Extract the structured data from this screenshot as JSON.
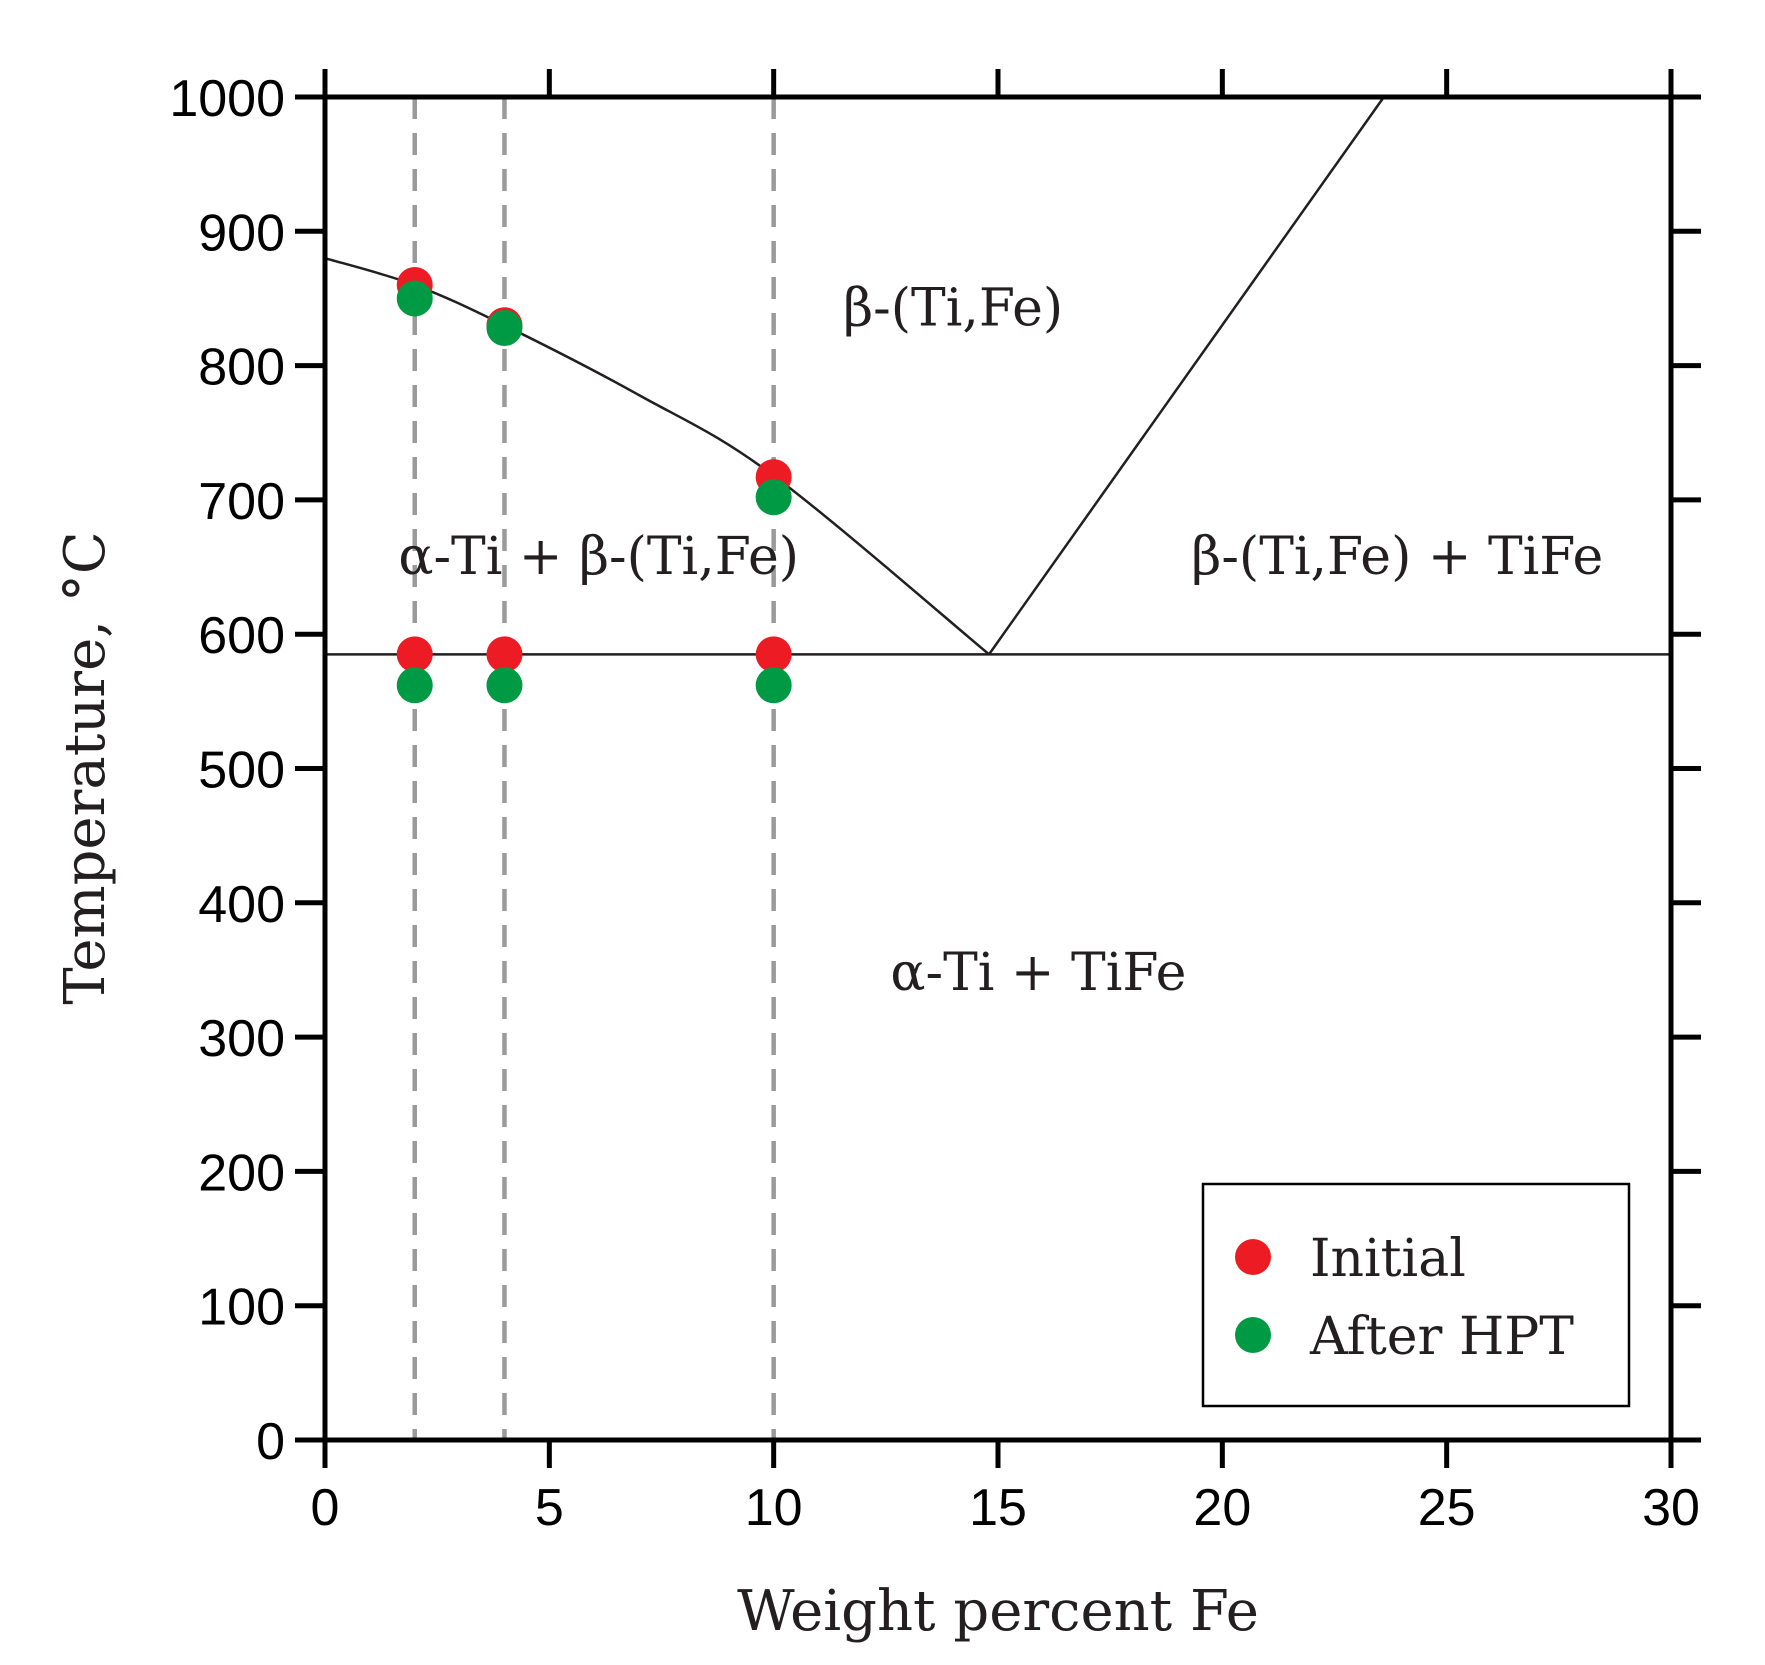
{
  "chart_data": {
    "type": "scatter",
    "title": "",
    "xlabel": "Weight percent Fe",
    "ylabel": "Temperature, °C",
    "xlim": [
      0,
      30
    ],
    "ylim": [
      0,
      1000
    ],
    "xticks": [
      0,
      5,
      10,
      15,
      20,
      25,
      30
    ],
    "yticks": [
      0,
      100,
      200,
      300,
      400,
      500,
      600,
      700,
      800,
      900,
      1000
    ],
    "grid": false,
    "legend_position": "bottom-right",
    "colors": {
      "initial": "#ed1c24",
      "after": "#009a44",
      "line": "#231f20",
      "dashed": "#9a9a9a"
    },
    "series": [
      {
        "name": "Initial",
        "color": "#ed1c24",
        "x": [
          2,
          4,
          10,
          2,
          4,
          10
        ],
        "y": [
          860,
          830,
          717,
          585,
          585,
          585
        ]
      },
      {
        "name": "After HPT",
        "color": "#009a44",
        "x": [
          2,
          4,
          10,
          2,
          4,
          10
        ],
        "y": [
          850,
          828,
          702,
          562,
          562,
          562
        ]
      }
    ],
    "phase_lines": {
      "beta_transus": [
        [
          0,
          880
        ],
        [
          2,
          860
        ],
        [
          4,
          830
        ],
        [
          7,
          778
        ],
        [
          10,
          718
        ],
        [
          14.8,
          585
        ]
      ],
      "tife_solvus": [
        [
          14.8,
          585
        ],
        [
          23.6,
          1000
        ]
      ],
      "eutectoid": [
        [
          0,
          585
        ],
        [
          30,
          585
        ]
      ]
    },
    "composition_lines": [
      2,
      4,
      10
    ],
    "region_labels": [
      {
        "text": "β-(Ti,Fe)",
        "x": 14.0,
        "y": 830
      },
      {
        "text": "α-Ti + β-(Ti,Fe)",
        "x": 6.1,
        "y": 645
      },
      {
        "text": "β-(Ti,Fe) + TiFe",
        "x": 23.9,
        "y": 645
      },
      {
        "text": "α-Ti + TiFe",
        "x": 15.9,
        "y": 335
      }
    ]
  }
}
